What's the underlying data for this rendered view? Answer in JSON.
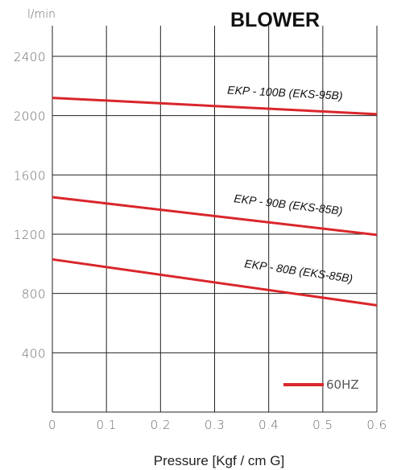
{
  "chart_data": {
    "type": "line",
    "title": "BLOWER",
    "ylabel": "l/min",
    "xlabel": "Pressure  [Kgf / cm  G]",
    "x_ticks": [
      "0",
      "0.1",
      "0.2",
      "0.3",
      "0.4",
      "0.5",
      "0.6"
    ],
    "y_ticks": [
      "400",
      "800",
      "1200",
      "1600",
      "2000",
      "2400"
    ],
    "xlim": [
      0,
      0.6
    ],
    "ylim": [
      0,
      2500
    ],
    "grid": true,
    "legend": {
      "label": "60HZ",
      "color": "#d9262c",
      "placement": "bottom-right"
    },
    "series": [
      {
        "name": "EKP - 100B (EKS-95B)",
        "x": [
          0,
          0.6
        ],
        "y": [
          2120,
          2010
        ]
      },
      {
        "name": "EKP - 90B (EKS-85B)",
        "x": [
          0,
          0.6
        ],
        "y": [
          1450,
          1195
        ]
      },
      {
        "name": "EKP - 80B (EKS-85B)",
        "x": [
          0,
          0.6
        ],
        "y": [
          1030,
          720
        ]
      }
    ]
  }
}
